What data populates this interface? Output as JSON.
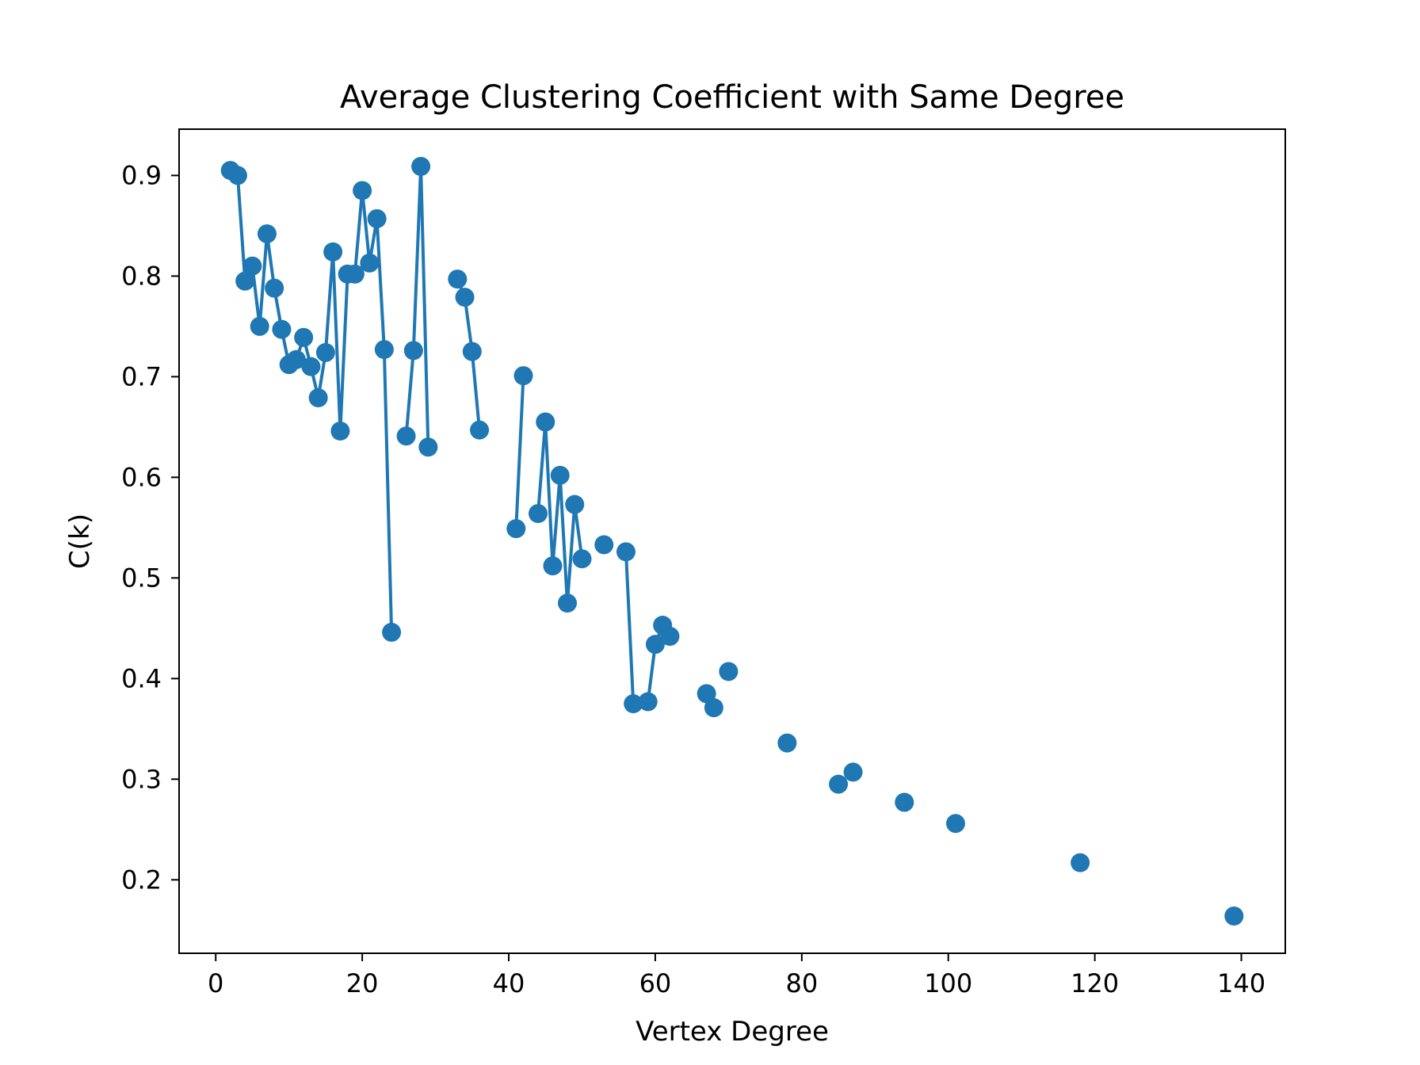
{
  "chart_data": {
    "type": "line",
    "title": "Average Clustering Coefficient with Same Degree",
    "xlabel": "Vertex Degree",
    "ylabel": "C(k)",
    "xlim": [
      -5,
      146
    ],
    "ylim": [
      0.127,
      0.946
    ],
    "xticks": [
      0,
      20,
      40,
      60,
      80,
      100,
      120,
      140
    ],
    "yticks": [
      0.2,
      0.3,
      0.4,
      0.5,
      0.6,
      0.7,
      0.8,
      0.9
    ],
    "grid": false,
    "color": "#1f77b4",
    "series": [
      {
        "x": [
          2,
          3,
          4,
          5,
          6,
          7,
          8,
          9,
          10,
          11,
          12,
          13,
          14,
          15,
          16,
          17,
          18,
          19,
          20,
          21,
          22,
          23,
          24,
          26,
          27,
          28,
          29,
          33,
          34,
          35,
          36,
          41,
          42,
          44,
          45,
          46,
          47,
          48,
          49,
          50,
          53,
          56,
          57,
          59,
          60,
          61,
          62,
          67,
          68,
          70,
          78,
          85,
          87,
          94,
          101,
          118,
          139
        ],
        "y": [
          0.905,
          0.9,
          0.795,
          0.81,
          0.75,
          0.842,
          0.788,
          0.747,
          0.712,
          0.717,
          0.739,
          0.71,
          0.679,
          0.724,
          0.824,
          0.646,
          0.802,
          0.802,
          0.885,
          0.813,
          0.857,
          0.727,
          0.446,
          0.641,
          0.726,
          0.909,
          0.63,
          0.797,
          0.779,
          0.725,
          0.647,
          0.549,
          0.701,
          0.564,
          0.655,
          0.512,
          0.602,
          0.475,
          0.573,
          0.519,
          0.533,
          0.526,
          0.375,
          0.377,
          0.434,
          0.453,
          0.442,
          0.385,
          0.371,
          0.407,
          0.336,
          0.295,
          0.307,
          0.277,
          0.256,
          0.217,
          0.164
        ],
        "connected": [
          1,
          1,
          1,
          1,
          1,
          1,
          1,
          1,
          1,
          1,
          1,
          1,
          1,
          1,
          1,
          1,
          1,
          1,
          1,
          1,
          1,
          1,
          0,
          1,
          1,
          1,
          0,
          1,
          1,
          1,
          0,
          1,
          0,
          1,
          1,
          1,
          1,
          1,
          1,
          0,
          0,
          1,
          0,
          1,
          1,
          1,
          0,
          1,
          0,
          0,
          0,
          0,
          0,
          0,
          0,
          0,
          0
        ]
      }
    ]
  }
}
